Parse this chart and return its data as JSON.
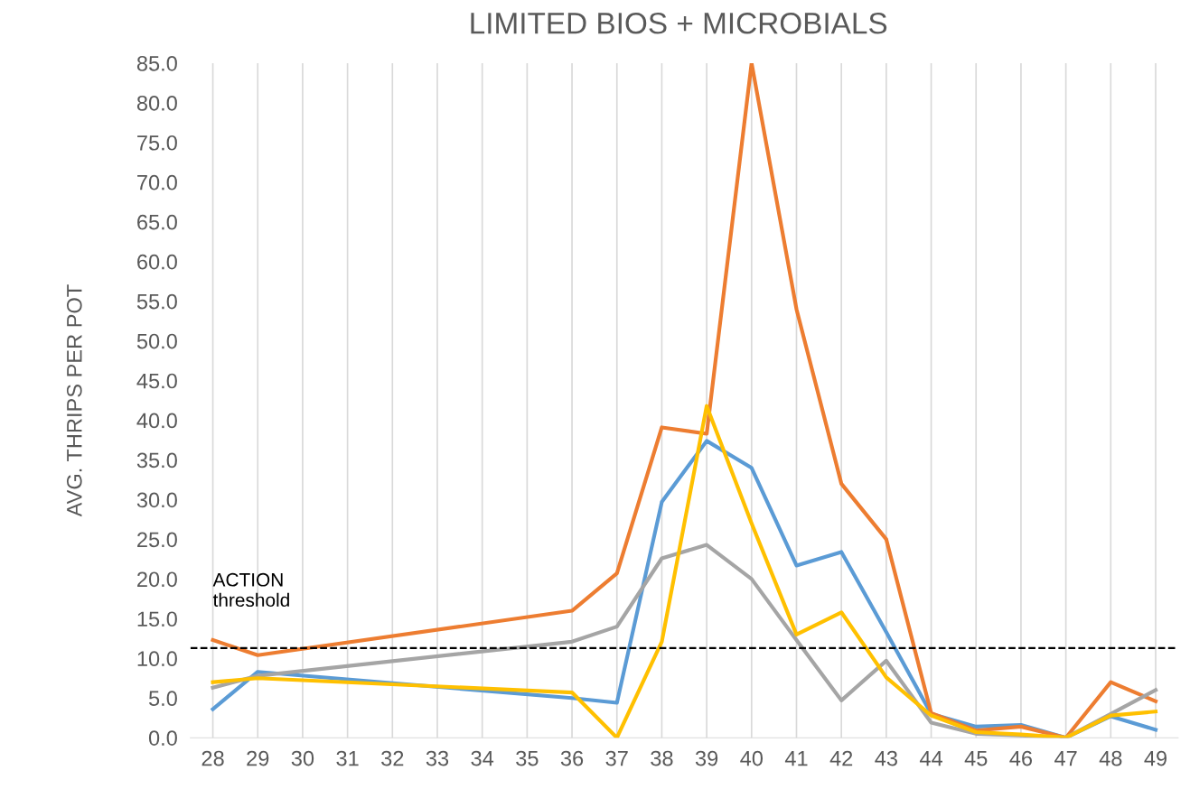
{
  "chart_data": {
    "type": "line",
    "title": "LIMITED BIOS + MICROBIALS",
    "ylabel": "AVG. THRIPS PER POT",
    "categories": [
      "28",
      "29",
      "30",
      "31",
      "32",
      "33",
      "34",
      "35",
      "36",
      "37",
      "38",
      "39",
      "40",
      "41",
      "42",
      "43",
      "44",
      "45",
      "46",
      "47",
      "48",
      "49"
    ],
    "series": [
      {
        "color": "#5b9bd5",
        "values": [
          3.6,
          8.3,
          null,
          null,
          null,
          null,
          null,
          null,
          5.0,
          4.4,
          29.7,
          37.4,
          34.0,
          21.7,
          23.4,
          13.3,
          3.0,
          1.4,
          1.6,
          0,
          2.7,
          1.0
        ]
      },
      {
        "color": "#ed7d31",
        "values": [
          12.3,
          10.4,
          null,
          null,
          null,
          null,
          null,
          null,
          16.0,
          20.7,
          39.1,
          38.3,
          85.0,
          54.0,
          32.0,
          25.0,
          3.1,
          0.9,
          1.4,
          0,
          7.0,
          4.6
        ]
      },
      {
        "color": "#a5a5a5",
        "values": [
          6.3,
          7.8,
          null,
          null,
          null,
          null,
          null,
          null,
          12.1,
          14.0,
          22.6,
          24.3,
          20.0,
          12.3,
          4.7,
          9.7,
          1.9,
          0.5,
          0.3,
          0,
          3.0,
          6.0
        ]
      },
      {
        "color": "#ffc000",
        "values": [
          7.0,
          7.5,
          null,
          null,
          null,
          null,
          null,
          null,
          5.7,
          0,
          12.1,
          41.8,
          27.0,
          13.0,
          15.8,
          7.6,
          2.8,
          0.7,
          0.4,
          0,
          2.8,
          3.3
        ]
      }
    ],
    "ylim": [
      0,
      85
    ],
    "yticks": [
      {
        "value": 0,
        "label": "0.0"
      },
      {
        "value": 5,
        "label": "5.0"
      },
      {
        "value": 10,
        "label": "10.0"
      },
      {
        "value": 15,
        "label": "15.0"
      },
      {
        "value": 20,
        "label": "20.0"
      },
      {
        "value": 25,
        "label": "25.0"
      },
      {
        "value": 30,
        "label": "30.0"
      },
      {
        "value": 35,
        "label": "35.0"
      },
      {
        "value": 40,
        "label": "40.0"
      },
      {
        "value": 45,
        "label": "45.0"
      },
      {
        "value": 50,
        "label": "50.0"
      },
      {
        "value": 55,
        "label": "55.0"
      },
      {
        "value": 60,
        "label": "60.0"
      },
      {
        "value": 65,
        "label": "65.0"
      },
      {
        "value": 70,
        "label": "70.0"
      },
      {
        "value": 75,
        "label": "75.0"
      },
      {
        "value": 80,
        "label": "80.0"
      },
      {
        "value": 85,
        "label": "85.0"
      }
    ],
    "ref_lines": [
      {
        "axis": "y",
        "value": 11.3,
        "label": "ACTION\nthreshold",
        "color": "#000000",
        "line_style": "dashed"
      }
    ],
    "grid": "x",
    "legend": false,
    "marker": "none",
    "line_style": "solid"
  }
}
